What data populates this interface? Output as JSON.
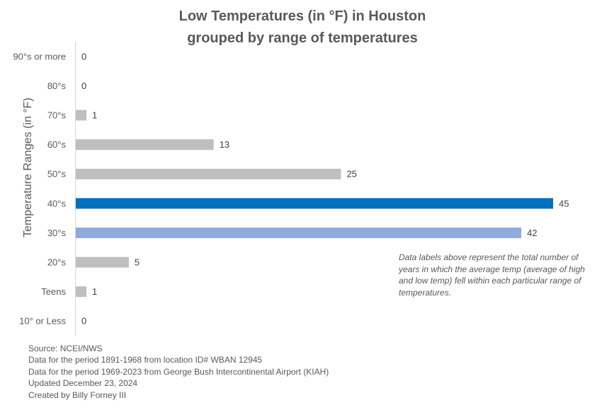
{
  "chart_data": {
    "type": "bar",
    "orientation": "horizontal",
    "title": [
      "Low Temperatures (in °F) in Houston",
      "grouped by range of temperatures"
    ],
    "ylabel": "Temperature Ranges (in °F)",
    "xlabel": "",
    "categories": [
      "90°s or more",
      "80°s",
      "70°s",
      "60°s",
      "50°s",
      "40°s",
      "30°s",
      "20°s",
      "Teens",
      "10° or Less"
    ],
    "values": [
      0,
      0,
      1,
      13,
      25,
      45,
      42,
      5,
      1,
      0
    ],
    "colors": [
      "#BFBFBF",
      "#BFBFBF",
      "#BFBFBF",
      "#BFBFBF",
      "#BFBFBF",
      "#0070C0",
      "#8FAADC",
      "#BFBFBF",
      "#BFBFBF",
      "#BFBFBF"
    ],
    "xlim": [
      0,
      45
    ],
    "grid": false,
    "legend": "none"
  },
  "annotation": "Data labels above represent the total number of years in which the average temp (average of high and low temp) fell within each particular range of temperatures.",
  "footnotes": [
    "Source: NCEI/NWS",
    "Data for the period 1891-1968 from location ID# WBAN 12945",
    "Data for the period 1969-2023 from George Bush Intercontinental Airport (KIAH)",
    "Updated December 23, 2024",
    "Created by Billy Forney III"
  ]
}
